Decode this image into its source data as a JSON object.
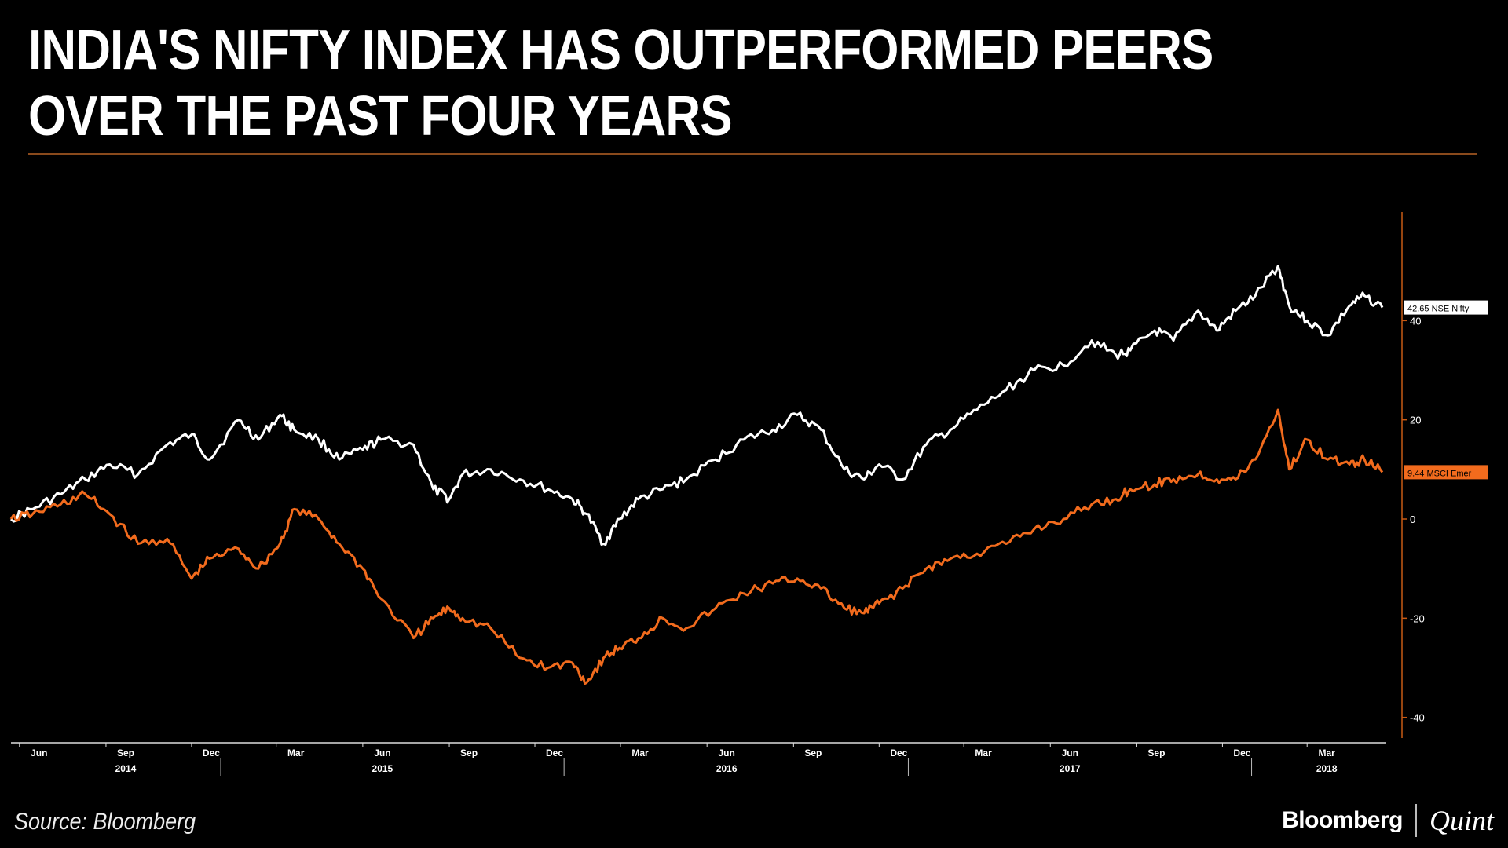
{
  "title": "INDIA'S NIFTY INDEX HAS OUTPERFORMED PEERS OVER THE PAST FOUR YEARS",
  "source": "Source: Bloomberg",
  "brand": {
    "left": "Bloomberg",
    "right": "Quint"
  },
  "colors": {
    "background": "#000000",
    "nifty": "#ffffff",
    "msci": "#f26b1d",
    "accent_rule": "#8a4a1c"
  },
  "chart_data": {
    "type": "line",
    "title": "",
    "xlabel": "",
    "ylabel": "",
    "x_ticks": [
      "Jun",
      "Sep",
      "Dec",
      "Mar",
      "Jun",
      "Sep",
      "Dec",
      "Mar",
      "Jun",
      "Sep",
      "Dec",
      "Mar",
      "Jun",
      "Sep",
      "Dec",
      "Mar"
    ],
    "year_labels": [
      "2014",
      "2015",
      "2016",
      "2017",
      "2018"
    ],
    "y_ticks": [
      "40",
      "20",
      "0",
      "-20",
      "-40"
    ],
    "ylim": [
      -41,
      60
    ],
    "xlim": [
      "2014-05-23",
      "2018-05-20"
    ],
    "grid": false,
    "series": [
      {
        "name": "NSE Nifty",
        "color": "#ffffff",
        "last_value": "42.65",
        "label": "42.65 NSE Nifty",
        "x": [
          "2014-05-23",
          "2014-06-15",
          "2014-07-15",
          "2014-08-10",
          "2014-09-05",
          "2014-10-05",
          "2014-11-05",
          "2014-12-01",
          "2014-12-20",
          "2015-01-20",
          "2015-02-10",
          "2015-03-05",
          "2015-03-20",
          "2015-04-15",
          "2015-05-07",
          "2015-06-01",
          "2015-06-20",
          "2015-07-25",
          "2015-08-15",
          "2015-09-01",
          "2015-09-15",
          "2015-10-15",
          "2015-11-15",
          "2015-12-15",
          "2016-01-10",
          "2016-01-25",
          "2016-02-12",
          "2016-02-29",
          "2016-03-20",
          "2016-04-15",
          "2016-05-10",
          "2016-06-10",
          "2016-07-10",
          "2016-08-10",
          "2016-09-05",
          "2016-09-30",
          "2016-10-25",
          "2016-11-15",
          "2016-12-01",
          "2016-12-26",
          "2017-01-20",
          "2017-02-15",
          "2017-03-15",
          "2017-04-15",
          "2017-05-15",
          "2017-06-15",
          "2017-07-15",
          "2017-08-10",
          "2017-08-25",
          "2017-09-20",
          "2017-10-10",
          "2017-11-05",
          "2017-11-25",
          "2017-12-15",
          "2018-01-05",
          "2018-01-29",
          "2018-02-10",
          "2018-03-01",
          "2018-03-23",
          "2018-04-15",
          "2018-05-01",
          "2018-05-20"
        ],
        "values": [
          0,
          2,
          5,
          8,
          11,
          9,
          15,
          17,
          12,
          20,
          16,
          21,
          18,
          16,
          12,
          14,
          16,
          15,
          6,
          4,
          9,
          10,
          8,
          6,
          4,
          1,
          -5,
          0,
          4,
          6,
          8,
          12,
          16,
          18,
          21,
          18,
          10,
          8,
          11,
          8,
          15,
          18,
          22,
          26,
          30,
          31,
          36,
          33,
          34,
          38,
          36,
          42,
          38,
          42,
          45,
          51,
          43,
          40,
          37,
          43,
          45,
          42.65
        ]
      },
      {
        "name": "MSCI Emer",
        "color": "#f26b1d",
        "last_value": "9.44",
        "label": "9.44 MSCI Emer",
        "x": [
          "2014-05-23",
          "2014-06-15",
          "2014-07-15",
          "2014-08-10",
          "2014-09-05",
          "2014-10-05",
          "2014-11-05",
          "2014-12-01",
          "2014-12-20",
          "2015-01-20",
          "2015-02-10",
          "2015-03-05",
          "2015-03-20",
          "2015-04-15",
          "2015-05-07",
          "2015-06-01",
          "2015-06-20",
          "2015-07-25",
          "2015-08-15",
          "2015-09-01",
          "2015-09-15",
          "2015-10-15",
          "2015-11-15",
          "2015-12-15",
          "2016-01-10",
          "2016-01-25",
          "2016-02-12",
          "2016-02-29",
          "2016-03-20",
          "2016-04-15",
          "2016-05-10",
          "2016-06-10",
          "2016-07-10",
          "2016-08-10",
          "2016-09-05",
          "2016-09-30",
          "2016-10-25",
          "2016-11-15",
          "2016-12-01",
          "2016-12-26",
          "2017-01-20",
          "2017-02-15",
          "2017-03-15",
          "2017-04-15",
          "2017-05-15",
          "2017-06-15",
          "2017-07-15",
          "2017-08-10",
          "2017-08-25",
          "2017-09-20",
          "2017-10-10",
          "2017-11-05",
          "2017-11-25",
          "2017-12-15",
          "2018-01-05",
          "2018-01-29",
          "2018-02-10",
          "2018-03-01",
          "2018-03-23",
          "2018-04-15",
          "2018-05-01",
          "2018-05-20"
        ],
        "values": [
          0,
          1,
          3,
          5,
          1,
          -5,
          -4,
          -12,
          -8,
          -6,
          -10,
          -5,
          2,
          0,
          -5,
          -10,
          -16,
          -24,
          -20,
          -18,
          -20,
          -22,
          -28,
          -30,
          -29,
          -33,
          -28,
          -26,
          -24,
          -20,
          -22,
          -18,
          -15,
          -13,
          -12,
          -14,
          -18,
          -19,
          -17,
          -14,
          -10,
          -8,
          -7,
          -5,
          -2,
          0,
          3,
          4,
          6,
          7,
          8,
          9,
          8,
          8,
          12,
          22,
          10,
          16,
          12,
          11,
          12,
          9.44
        ]
      }
    ]
  }
}
